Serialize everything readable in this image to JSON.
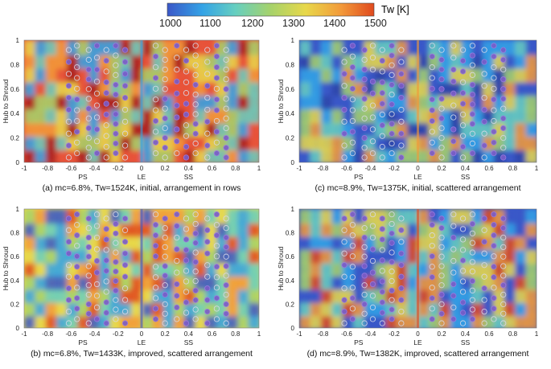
{
  "colorbar": {
    "label": "Tw [K]",
    "min": 1000,
    "max": 1500,
    "ticks": [
      "1000",
      "1100",
      "1200",
      "1300",
      "1400",
      "1500"
    ],
    "stops": [
      "#3a57c8",
      "#34a3e6",
      "#66cfc0",
      "#a6d26a",
      "#e8d84a",
      "#f29a3a",
      "#e04a1e"
    ]
  },
  "chart_data": [
    {
      "type": "heatmap",
      "title": "(a) mc=6.8%, Tw=1524K, initial, arrangement in rows",
      "xlabel_regions": [
        "PS",
        "LE",
        "SS"
      ],
      "ylabel": "Hub to Shroud",
      "xticks": [
        "-1",
        "-0.8",
        "-0.6",
        "-0.4",
        "-0.2",
        "0",
        "0.2",
        "0.4",
        "0.6",
        "0.8",
        "1"
      ],
      "yticks": [
        "0",
        "0.2",
        "0.4",
        "0.6",
        "0.8",
        "1"
      ],
      "xlim": [
        -1,
        1
      ],
      "ylim": [
        0,
        1
      ],
      "metrics": {
        "mc_percent": 6.8,
        "Tw_K": 1524
      },
      "design": "initial",
      "arrangement": "in rows",
      "color_palette": [
        "#e8543a",
        "#a81e1e",
        "#f29a3a",
        "#e8d84a",
        "#a6d26a",
        "#66cfc0",
        "#34a3e6"
      ]
    },
    {
      "type": "heatmap",
      "title": "(c) mc=8.9%, Tw=1375K, initial, scattered arrangement",
      "xlabel_regions": [
        "PS",
        "LE",
        "SS"
      ],
      "ylabel": "Hub to Shroud",
      "xticks": [
        "-1",
        "-0.8",
        "-0.6",
        "-0.4",
        "-0.2",
        "0",
        "0.2",
        "0.4",
        "0.6",
        "0.8",
        "1"
      ],
      "yticks": [
        "0",
        "0.2",
        "0.4",
        "0.6",
        "0.8",
        "1"
      ],
      "xlim": [
        -1,
        1
      ],
      "ylim": [
        0,
        1
      ],
      "metrics": {
        "mc_percent": 8.9,
        "Tw_K": 1375
      },
      "design": "initial",
      "arrangement": "scattered",
      "color_palette": [
        "#3a57c8",
        "#2e44a8",
        "#34a3e6",
        "#66cfc0",
        "#a6d26a",
        "#e8d84a",
        "#f29a3a"
      ]
    },
    {
      "type": "heatmap",
      "title": "(b) mc=6.8%, Tw=1433K, improved, scattered arrangement",
      "xlabel_regions": [
        "PS",
        "LE",
        "SS"
      ],
      "ylabel": "Hub to Shroud",
      "xticks": [
        "-1",
        "-0.8",
        "-0.6",
        "-0.4",
        "-0.2",
        "0",
        "0.2",
        "0.4",
        "0.6",
        "0.8",
        "1"
      ],
      "yticks": [
        "0",
        "0.2",
        "0.4",
        "0.6",
        "0.8",
        "1"
      ],
      "xlim": [
        -1,
        1
      ],
      "ylim": [
        0,
        1
      ],
      "metrics": {
        "mc_percent": 6.8,
        "Tw_K": 1433
      },
      "design": "improved",
      "arrangement": "scattered",
      "color_palette": [
        "#e8d84a",
        "#f29a3a",
        "#e04a1e",
        "#a6d26a",
        "#66cfc0",
        "#34a3e6",
        "#3a57c8"
      ]
    },
    {
      "type": "heatmap",
      "title": "(d) mc=8.9%, Tw=1382K, improved, scattered arrangement",
      "xlabel_regions": [
        "PS",
        "LE",
        "SS"
      ],
      "ylabel": "Hub to Shroud",
      "xticks": [
        "-1",
        "-0.8",
        "-0.6",
        "-0.4",
        "-0.2",
        "0",
        "0.2",
        "0.4",
        "0.6",
        "0.8",
        "1"
      ],
      "yticks": [
        "0",
        "0.2",
        "0.4",
        "0.6",
        "0.8",
        "1"
      ],
      "xlim": [
        -1,
        1
      ],
      "ylim": [
        0,
        1
      ],
      "metrics": {
        "mc_percent": 8.9,
        "Tw_K": 1382
      },
      "design": "improved",
      "arrangement": "scattered",
      "color_palette": [
        "#3a57c8",
        "#34a3e6",
        "#66cfc0",
        "#a6d26a",
        "#e8d84a",
        "#f29a3a",
        "#e04a1e"
      ]
    }
  ]
}
